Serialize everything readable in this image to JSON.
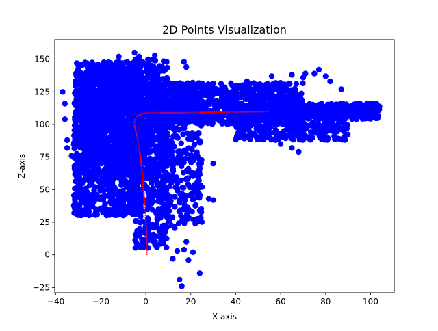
{
  "chart_data": {
    "type": "scatter",
    "title": "2D Points Visualization",
    "xlabel": "X-axis",
    "ylabel": "Z-axis",
    "xlim": [
      -40.5,
      110.5
    ],
    "ylim": [
      -29,
      165
    ],
    "x_ticks": [
      -40,
      -20,
      0,
      20,
      40,
      60,
      80,
      100
    ],
    "y_ticks": [
      -25,
      0,
      25,
      50,
      75,
      100,
      125,
      150
    ],
    "grid": false,
    "legend": "none",
    "colors": {
      "points": "#0000ff",
      "path": "#ff0000"
    },
    "series": [
      {
        "kind": "scatter",
        "color": "#0000ff",
        "regions": [
          {
            "x_range": [
              -32,
              -2
            ],
            "z_range": [
              30,
              148
            ],
            "count": 1400
          },
          {
            "x_range": [
              -28,
              8
            ],
            "z_range": [
              60,
              140
            ],
            "count": 700
          },
          {
            "x_range": [
              -5,
              10
            ],
            "z_range": [
              5,
              150
            ],
            "count": 500
          },
          {
            "x_range": [
              5,
              25
            ],
            "z_range": [
              20,
              130
            ],
            "count": 350
          },
          {
            "x_range": [
              0,
              70
            ],
            "z_range": [
              100,
              132
            ],
            "count": 900
          },
          {
            "x_range": [
              40,
              104
            ],
            "z_range": [
              104,
              116
            ],
            "count": 550
          },
          {
            "x_range": [
              40,
              90
            ],
            "z_range": [
              88,
              102
            ],
            "count": 250
          }
        ],
        "points": [
          [
            -37,
            125
          ],
          [
            -36,
            116
          ],
          [
            -36,
            104
          ],
          [
            -35,
            88
          ],
          [
            -35,
            82
          ],
          [
            -33,
            76
          ],
          [
            -31,
            51
          ],
          [
            -32,
            38
          ],
          [
            -20,
            145
          ],
          [
            -12,
            152
          ],
          [
            -5,
            155
          ],
          [
            -3,
            152
          ],
          [
            4,
            153
          ],
          [
            17,
            148
          ],
          [
            18,
            144
          ],
          [
            45,
            133
          ],
          [
            56,
            137
          ],
          [
            65,
            138
          ],
          [
            70,
            136
          ],
          [
            71,
            139
          ],
          [
            75,
            139
          ],
          [
            77,
            142
          ],
          [
            80,
            137
          ],
          [
            82,
            133
          ],
          [
            87,
            127
          ],
          [
            60,
            85
          ],
          [
            65,
            82
          ],
          [
            68,
            79
          ],
          [
            30,
            70
          ],
          [
            28,
            43
          ],
          [
            30,
            42
          ],
          [
            25,
            52
          ],
          [
            21,
            72
          ],
          [
            23,
            76
          ],
          [
            20,
            63
          ],
          [
            24,
            34
          ],
          [
            22,
            24
          ],
          [
            17,
            28
          ],
          [
            18,
            10
          ],
          [
            14,
            3
          ],
          [
            12,
            -3
          ],
          [
            17,
            4
          ],
          [
            21,
            2
          ],
          [
            19,
            -4
          ],
          [
            24,
            -14
          ],
          [
            15,
            -19
          ],
          [
            16,
            -24
          ],
          [
            103,
            111
          ],
          [
            100,
            110
          ],
          [
            96,
            113
          ],
          [
            90,
            109
          ],
          [
            88,
            97
          ],
          [
            80,
            94
          ],
          [
            75,
            98
          ],
          [
            70,
            96
          ]
        ]
      },
      {
        "kind": "line",
        "color": "#ff0000",
        "points": [
          [
            0.5,
            0
          ],
          [
            0.4,
            10
          ],
          [
            0.2,
            20
          ],
          [
            -0.2,
            32
          ],
          [
            -0.8,
            45
          ],
          [
            -1.4,
            58
          ],
          [
            -2,
            70
          ],
          [
            -3,
            82
          ],
          [
            -4,
            92
          ],
          [
            -5,
            99
          ],
          [
            -5,
            103
          ],
          [
            -4,
            106
          ],
          [
            -2,
            108
          ],
          [
            2,
            109
          ],
          [
            10,
            109
          ],
          [
            20,
            109
          ],
          [
            30,
            109.3
          ],
          [
            40,
            109.6
          ],
          [
            50,
            109.8
          ],
          [
            55,
            110
          ]
        ]
      }
    ]
  }
}
